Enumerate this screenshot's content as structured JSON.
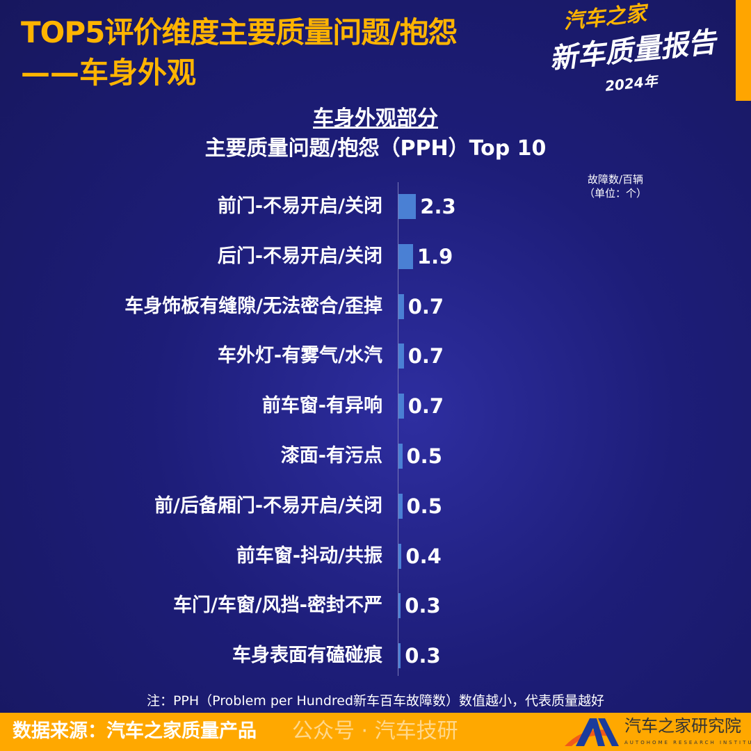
{
  "header": {
    "title_line1": "TOP5评价维度主要质量问题/抱怨",
    "title_line2": "——车身外观"
  },
  "logo": {
    "brand": "汽车之家",
    "name": "新车质量报告",
    "year": "2024年"
  },
  "chart_data": {
    "type": "bar",
    "orientation": "horizontal",
    "title": "车身外观部分",
    "subtitle": "主要质量问题/抱怨（PPH）Top 10",
    "unit_line1": "故障数/百辆",
    "unit_line2": "（单位：个）",
    "categories": [
      "前门-不易开启/关闭",
      "后门-不易开启/关闭",
      "车身饰板有缝隙/无法密合/歪掉",
      "车外灯-有雾气/水汽",
      "前车窗-有异响",
      "漆面-有污点",
      "前/后备厢门-不易开启/关闭",
      "前车窗-抖动/共振",
      "车门/车窗/风挡-密封不严",
      "车身表面有磕碰痕"
    ],
    "values": [
      2.3,
      1.9,
      0.7,
      0.7,
      0.7,
      0.5,
      0.5,
      0.4,
      0.3,
      0.3
    ],
    "labels": [
      "2.3",
      "1.9",
      "0.7",
      "0.7",
      "0.7",
      "0.5",
      "0.5",
      "0.4",
      "0.3",
      "0.3"
    ],
    "bar_color": "#4a80d4"
  },
  "note": "注：PPH（Problem per Hundred新车百车故障数）数值越小，代表质量越好",
  "footer": {
    "source": "数据来源：汽车之家质量产品",
    "watermark": "公众号 · 汽车技研",
    "institute": "汽车之家研究院",
    "institute_en": "AUTOHOME RESEARCH INSTITUTE"
  },
  "colors": {
    "accent": "#ffa800",
    "background": "#1d1d78"
  }
}
